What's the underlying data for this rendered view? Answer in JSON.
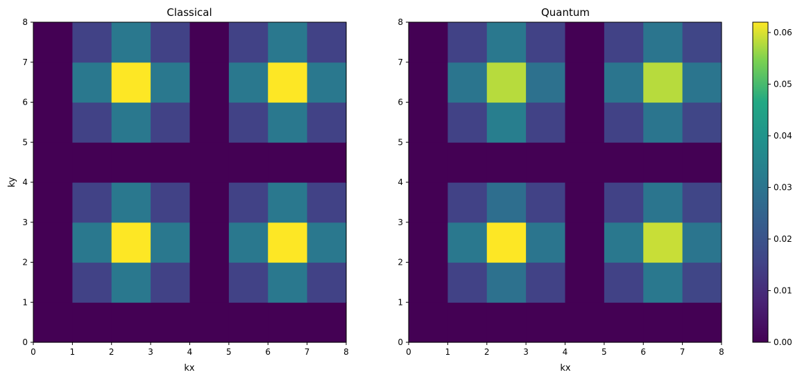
{
  "chart_data": [
    {
      "type": "heatmap",
      "title": "Classical",
      "xlabel": "kx",
      "ylabel": "ky",
      "xlim": [
        0,
        8
      ],
      "ylim": [
        0,
        8
      ],
      "xticks": [
        "0",
        "1",
        "2",
        "3",
        "4",
        "5",
        "6",
        "7",
        "8"
      ],
      "yticks": [
        "0",
        "1",
        "2",
        "3",
        "4",
        "5",
        "6",
        "7",
        "8"
      ],
      "grid": false,
      "z_rows_from_bottom": [
        [
          0,
          0,
          0,
          0,
          0,
          0,
          0,
          0
        ],
        [
          0,
          0.015,
          0.031,
          0.015,
          0,
          0.015,
          0.031,
          0.015
        ],
        [
          0,
          0.031,
          0.062,
          0.031,
          0,
          0.031,
          0.062,
          0.031
        ],
        [
          0,
          0.015,
          0.031,
          0.015,
          0,
          0.015,
          0.031,
          0.015
        ],
        [
          0,
          0,
          0,
          0,
          0,
          0,
          0,
          0
        ],
        [
          0,
          0.015,
          0.031,
          0.015,
          0,
          0.015,
          0.031,
          0.015
        ],
        [
          0,
          0.031,
          0.062,
          0.031,
          0,
          0.031,
          0.062,
          0.031
        ],
        [
          0,
          0.015,
          0.031,
          0.015,
          0,
          0.015,
          0.031,
          0.015
        ]
      ]
    },
    {
      "type": "heatmap",
      "title": "Quantum",
      "xlabel": "kx",
      "ylabel": "",
      "xlim": [
        0,
        8
      ],
      "ylim": [
        0,
        8
      ],
      "xticks": [
        "0",
        "1",
        "2",
        "3",
        "4",
        "5",
        "6",
        "7",
        "8"
      ],
      "yticks": [
        "0",
        "1",
        "2",
        "3",
        "4",
        "5",
        "6",
        "7",
        "8"
      ],
      "grid": false,
      "z_rows_from_bottom": [
        [
          0,
          0,
          0,
          0,
          0,
          0,
          0,
          0
        ],
        [
          0,
          0.015,
          0.029,
          0.015,
          0,
          0.015,
          0.031,
          0.016
        ],
        [
          0,
          0.031,
          0.062,
          0.03,
          0,
          0.031,
          0.059,
          0.03
        ],
        [
          0,
          0.015,
          0.028,
          0.015,
          0,
          0.015,
          0.03,
          0.016
        ],
        [
          0,
          0,
          0,
          0,
          0,
          0,
          0,
          0
        ],
        [
          0,
          0.015,
          0.033,
          0.015,
          0,
          0.015,
          0.03,
          0.016
        ],
        [
          0,
          0.03,
          0.058,
          0.029,
          0,
          0.03,
          0.058,
          0.03
        ],
        [
          0,
          0.015,
          0.031,
          0.015,
          0,
          0.015,
          0.03,
          0.016
        ]
      ]
    }
  ],
  "colorbar": {
    "colormap": "viridis",
    "range": [
      0,
      0.062
    ],
    "ticks": [
      "0.00",
      "0.01",
      "0.02",
      "0.03",
      "0.04",
      "0.05",
      "0.06"
    ]
  }
}
